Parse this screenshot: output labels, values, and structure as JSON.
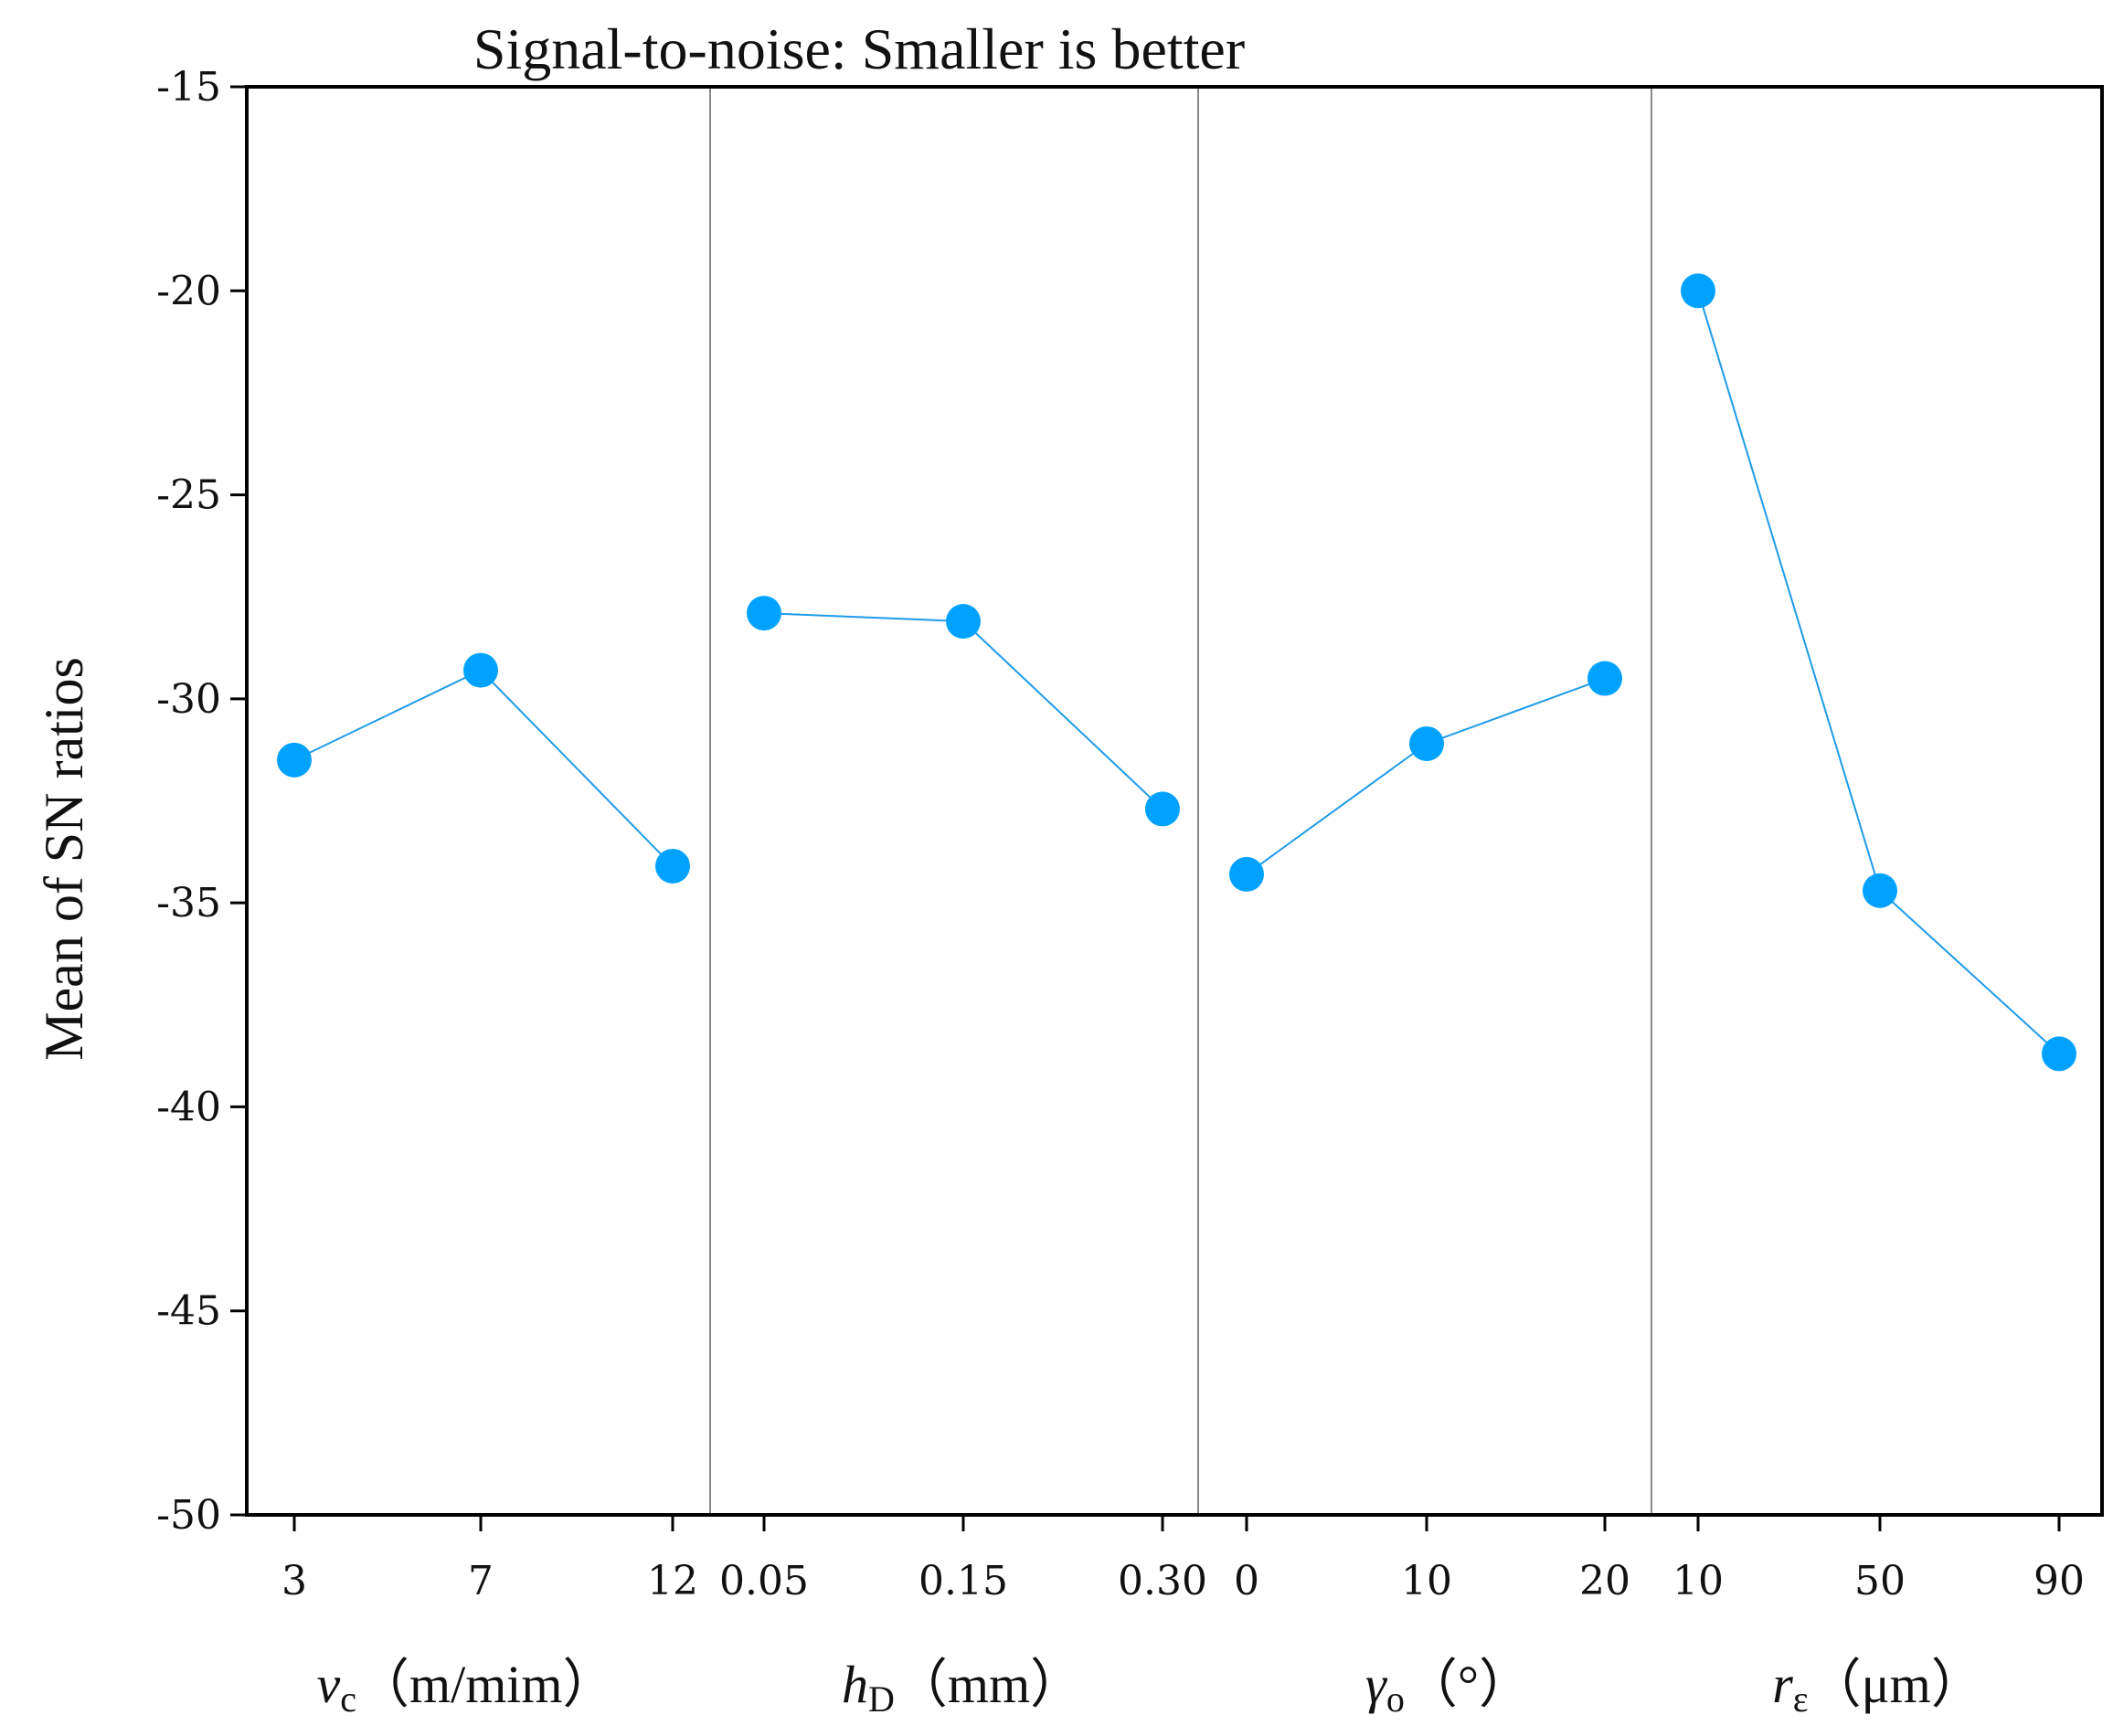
{
  "chart_data": {
    "type": "line",
    "title": "Signal-to-noise: Smaller is better",
    "ylabel": "Mean of SN ratios",
    "ylim": [
      -50,
      -15
    ],
    "yticks": [
      "-15",
      "-20",
      "-25",
      "-30",
      "-35",
      "-40",
      "-45",
      "-50"
    ],
    "yvalues": [
      -15,
      -20,
      -25,
      -30,
      -35,
      -40,
      -45,
      -50
    ],
    "colors": {
      "series": "#1e9be8",
      "marker": "#00a2ff",
      "axis": "#000000",
      "separator": "#8a8a8a"
    },
    "panels": [
      {
        "name": "vc",
        "label_symbol": "v",
        "label_sub": "c",
        "label_unit": "（m/mim）",
        "categories": [
          "3",
          "7",
          "12"
        ],
        "values": [
          -31.5,
          -29.3,
          -34.1
        ]
      },
      {
        "name": "hD",
        "label_symbol": "h",
        "label_sub": "D",
        "label_unit": "（mm）",
        "categories": [
          "0.05",
          "0.15",
          "0.30"
        ],
        "values": [
          -27.9,
          -28.1,
          -32.7
        ]
      },
      {
        "name": "gamma",
        "label_symbol": "γ",
        "label_sub": "o",
        "label_unit": "（°）",
        "categories": [
          "0",
          "10",
          "20"
        ],
        "values": [
          -34.3,
          -31.1,
          -29.5
        ]
      },
      {
        "name": "reps",
        "label_symbol": "r",
        "label_sub": "ε",
        "label_unit": "（μm）",
        "categories": [
          "10",
          "50",
          "90"
        ],
        "values": [
          -20.0,
          -34.7,
          -38.7
        ]
      }
    ]
  }
}
